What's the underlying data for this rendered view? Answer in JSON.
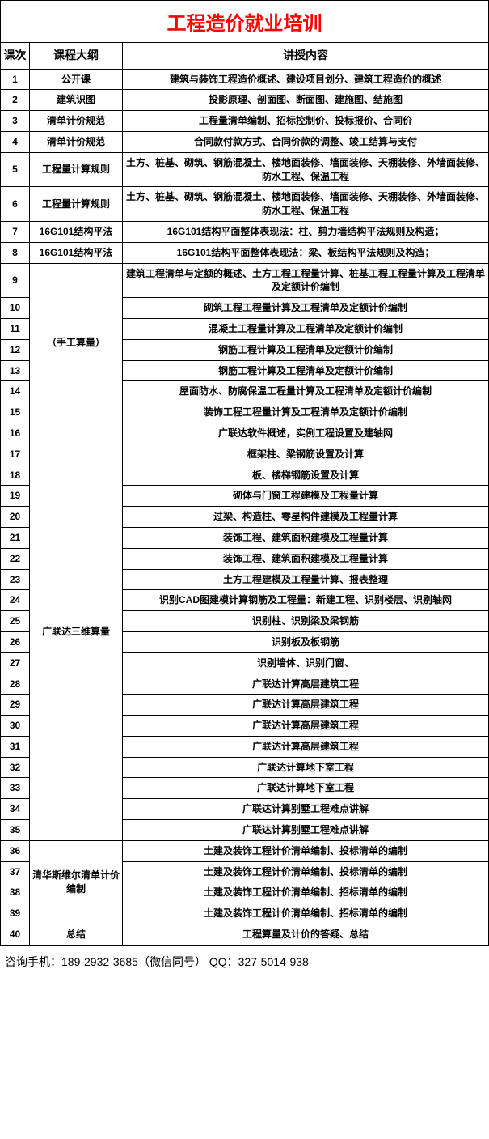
{
  "title": "工程造价就业培训",
  "headers": {
    "num": "课次",
    "outline": "课程大纲",
    "content": "讲授内容"
  },
  "groups": [
    {
      "outline": "公开课",
      "rows": [
        {
          "n": "1",
          "c": "建筑与装饰工程造价概述、建设项目划分、建筑工程造价的概述"
        }
      ]
    },
    {
      "outline": "建筑识图",
      "rows": [
        {
          "n": "2",
          "c": "投影原理、剖面图、断面图、建施图、结施图"
        }
      ]
    },
    {
      "outline": "清单计价规范",
      "rows": [
        {
          "n": "3",
          "c": "工程量清单编制、招标控制价、投标报价、合同价"
        }
      ]
    },
    {
      "outline": "清单计价规范",
      "rows": [
        {
          "n": "4",
          "c": "合同款付款方式、合同价款的调整、竣工结算与支付"
        }
      ]
    },
    {
      "outline": "工程量计算规则",
      "rows": [
        {
          "n": "5",
          "c": "土方、桩基、砌筑、钢筋混凝土、楼地面装修、墙面装修、天棚装修、外墙面装修、防水工程、保温工程"
        }
      ]
    },
    {
      "outline": "工程量计算规则",
      "rows": [
        {
          "n": "6",
          "c": "土方、桩基、砌筑、钢筋混凝土、楼地面装修、墙面装修、天棚装修、外墙面装修、防水工程、保温工程"
        }
      ]
    },
    {
      "outline": "16G101结构平法",
      "rows": [
        {
          "n": "7",
          "c": "16G101结构平面整体表现法：柱、剪力墙结构平法规则及构造；"
        }
      ]
    },
    {
      "outline": "16G101结构平法",
      "rows": [
        {
          "n": "8",
          "c": "16G101结构平面整体表现法：梁、板结构平法规则及构造；"
        }
      ]
    },
    {
      "outline": "（手工算量）",
      "rows": [
        {
          "n": "9",
          "c": "建筑工程清单与定额的概述、土方工程工程量计算、桩基工程工程量计算及工程清单及定额计价编制"
        },
        {
          "n": "10",
          "c": "砌筑工程工程量计算及工程清单及定额计价编制"
        },
        {
          "n": "11",
          "c": "混凝土工程量计算及工程清单及定额计价编制"
        },
        {
          "n": "12",
          "c": "钢筋工程计算及工程清单及定额计价编制"
        },
        {
          "n": "13",
          "c": "钢筋工程计算及工程清单及定额计价编制"
        },
        {
          "n": "14",
          "c": "屋面防水、防腐保温工程量计算及工程清单及定额计价编制"
        },
        {
          "n": "15",
          "c": "装饰工程工程量计算及工程清单及定额计价编制"
        }
      ]
    },
    {
      "outline": "广联达三维算量",
      "rows": [
        {
          "n": "16",
          "c": "广联达软件概述，实例工程设置及建轴网"
        },
        {
          "n": "17",
          "c": "框架柱、梁钢筋设置及计算"
        },
        {
          "n": "18",
          "c": "板、楼梯钢筋设置及计算"
        },
        {
          "n": "19",
          "c": "砌体与门窗工程建模及工程量计算"
        },
        {
          "n": "20",
          "c": "过梁、构造柱、零星构件建模及工程量计算"
        },
        {
          "n": "21",
          "c": "装饰工程、建筑面积建模及工程量计算"
        },
        {
          "n": "22",
          "c": "装饰工程、建筑面积建模及工程量计算"
        },
        {
          "n": "23",
          "c": "土方工程建模及工程量计算、报表整理"
        },
        {
          "n": "24",
          "c": "识别CAD图建模计算钢筋及工程量：新建工程、识别楼层、识别轴网"
        },
        {
          "n": "25",
          "c": "识别柱、识别梁及梁钢筋"
        },
        {
          "n": "26",
          "c": "识别板及板钢筋"
        },
        {
          "n": "27",
          "c": "识别墙体、识别门窗、"
        },
        {
          "n": "28",
          "c": "广联达计算高层建筑工程"
        },
        {
          "n": "29",
          "c": "广联达计算高层建筑工程"
        },
        {
          "n": "30",
          "c": "广联达计算高层建筑工程"
        },
        {
          "n": "31",
          "c": "广联达计算高层建筑工程"
        },
        {
          "n": "32",
          "c": "广联达计算地下室工程"
        },
        {
          "n": "33",
          "c": "广联达计算地下室工程"
        },
        {
          "n": "34",
          "c": "广联达计算别墅工程难点讲解"
        },
        {
          "n": "35",
          "c": "广联达计算别墅工程难点讲解"
        }
      ]
    },
    {
      "outline": "清华斯维尔清单计价编制",
      "rows": [
        {
          "n": "36",
          "c": "土建及装饰工程计价清单编制、投标清单的编制"
        },
        {
          "n": "37",
          "c": "土建及装饰工程计价清单编制、投标清单的编制"
        },
        {
          "n": "38",
          "c": "土建及装饰工程计价清单编制、招标清单的编制"
        },
        {
          "n": "39",
          "c": "土建及装饰工程计价清单编制、招标清单的编制"
        }
      ]
    },
    {
      "outline": "总结",
      "rows": [
        {
          "n": "40",
          "c": "工程算量及计价的答疑、总结"
        }
      ]
    }
  ],
  "footer": "咨询手机：189-2932-3685（微信同号）  QQ：327-5014-938"
}
